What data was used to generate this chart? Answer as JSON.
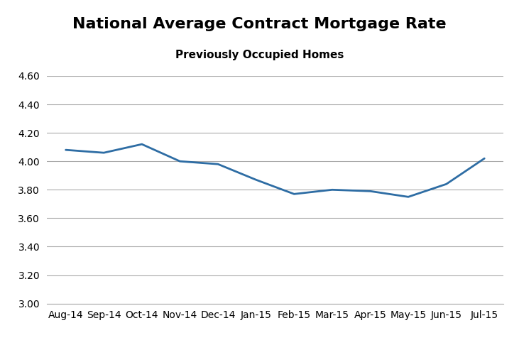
{
  "title": "National Average Contract Mortgage Rate",
  "subtitle": "Previously Occupied Homes",
  "x_labels": [
    "Aug-14",
    "Sep-14",
    "Oct-14",
    "Nov-14",
    "Dec-14",
    "Jan-15",
    "Feb-15",
    "Mar-15",
    "Apr-15",
    "May-15",
    "Jun-15",
    "Jul-15"
  ],
  "values": [
    4.08,
    4.06,
    4.12,
    4.0,
    3.98,
    3.87,
    3.77,
    3.8,
    3.79,
    3.75,
    3.84,
    4.02
  ],
  "ylim": [
    3.0,
    4.6
  ],
  "yticks": [
    3.0,
    3.2,
    3.4,
    3.6,
    3.8,
    4.0,
    4.2,
    4.4,
    4.6
  ],
  "line_color": "#2E6DA4",
  "line_width": 2.0,
  "background_color": "#ffffff",
  "grid_color": "#aaaaaa",
  "title_fontsize": 16,
  "subtitle_fontsize": 11,
  "tick_fontsize": 10
}
